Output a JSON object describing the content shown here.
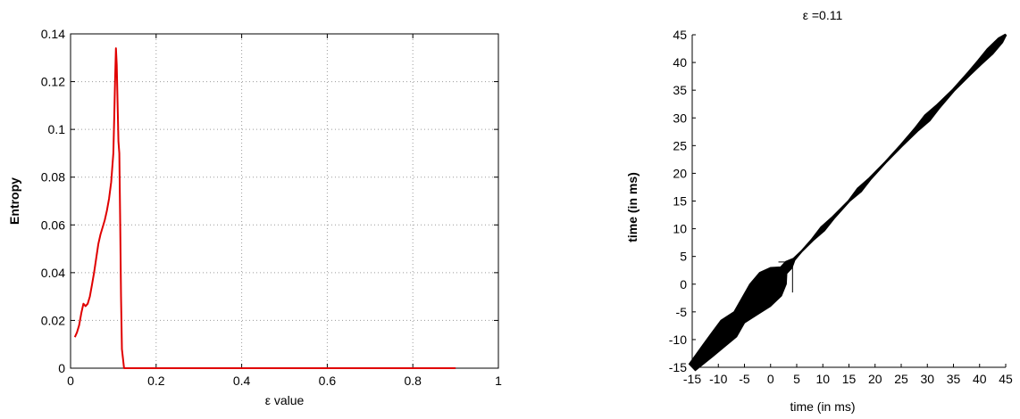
{
  "chart_data": [
    {
      "type": "line",
      "title": "",
      "xlabel": "ε value",
      "ylabel": "Entropy",
      "xlim": [
        0,
        1
      ],
      "ylim": [
        0,
        0.14
      ],
      "xticks": [
        0,
        0.2,
        0.4,
        0.6,
        0.8,
        1
      ],
      "xtick_labels": [
        "0",
        "0.2",
        "0.4",
        "0.6",
        "0.8",
        "1"
      ],
      "yticks": [
        0,
        0.02,
        0.04,
        0.06,
        0.08,
        0.1,
        0.12,
        0.14
      ],
      "ytick_labels": [
        "0",
        "0.02",
        "0.04",
        "0.06",
        "0.08",
        "0.1",
        "0.12",
        "0.14"
      ],
      "grid": true,
      "series": [
        {
          "color": "#e00000",
          "x": [
            0.01,
            0.015,
            0.02,
            0.025,
            0.03,
            0.035,
            0.04,
            0.045,
            0.05,
            0.055,
            0.06,
            0.065,
            0.07,
            0.075,
            0.08,
            0.085,
            0.09,
            0.095,
            0.1,
            0.102,
            0.104,
            0.106,
            0.108,
            0.11,
            0.112,
            0.114,
            0.116,
            0.118,
            0.12,
            0.125,
            0.2,
            0.4,
            0.6,
            0.8,
            0.9
          ],
          "y": [
            0.013,
            0.015,
            0.018,
            0.023,
            0.027,
            0.026,
            0.027,
            0.03,
            0.035,
            0.04,
            0.046,
            0.052,
            0.056,
            0.059,
            0.062,
            0.066,
            0.071,
            0.078,
            0.09,
            0.105,
            0.12,
            0.134,
            0.127,
            0.11,
            0.095,
            0.09,
            0.06,
            0.03,
            0.008,
            0,
            0,
            0,
            0,
            0,
            0
          ]
        }
      ]
    },
    {
      "type": "recurrence-plot",
      "title": "ε =0.11",
      "xlabel": "time (in ms)",
      "ylabel": "time (in ms)",
      "xlim": [
        -15,
        45
      ],
      "ylim": [
        -15,
        45
      ],
      "xticks": [
        -15,
        -10,
        -5,
        0,
        5,
        10,
        15,
        20,
        25,
        30,
        35,
        40,
        45
      ],
      "xtick_labels": [
        "-15",
        "-10",
        "-5",
        "0",
        "5",
        "10",
        "15",
        "20",
        "25",
        "30",
        "35",
        "40",
        "45"
      ],
      "yticks": [
        -15,
        -10,
        -5,
        0,
        5,
        10,
        15,
        20,
        25,
        30,
        35,
        40,
        45
      ],
      "ytick_labels": [
        "-15",
        "-10",
        "-5",
        "0",
        "5",
        "10",
        "15",
        "20",
        "25",
        "30",
        "35",
        "40",
        "45"
      ],
      "grid": false,
      "color": "#000000",
      "diagonal_half_width": [
        [
          -15,
          1.2
        ],
        [
          -12,
          2.0
        ],
        [
          -10,
          2.5
        ],
        [
          -8,
          3.0
        ],
        [
          -6,
          2.0
        ],
        [
          -4,
          3.0
        ],
        [
          -2,
          4.0
        ],
        [
          0,
          4.2
        ],
        [
          1.5,
          3.0
        ],
        [
          2.5,
          1.2
        ],
        [
          3.5,
          1.2
        ],
        [
          4.5,
          0.3
        ],
        [
          6,
          0.15
        ],
        [
          8,
          0.3
        ],
        [
          10,
          0.7
        ],
        [
          12,
          0.35
        ],
        [
          15,
          0.2
        ],
        [
          17,
          0.7
        ],
        [
          19,
          0.3
        ],
        [
          22,
          0.2
        ],
        [
          25,
          0.3
        ],
        [
          28,
          0.6
        ],
        [
          30,
          1.0
        ],
        [
          32,
          0.6
        ],
        [
          35,
          0.3
        ],
        [
          38,
          0.5
        ],
        [
          40,
          0.7
        ],
        [
          42,
          1.0
        ],
        [
          44,
          0.8
        ],
        [
          45,
          0.2
        ]
      ],
      "stray_lines": [
        {
          "from": [
            1.5,
            4.0
          ],
          "to": [
            4.0,
            4.0
          ]
        },
        {
          "from": [
            4.2,
            3.5
          ],
          "to": [
            4.2,
            -1.5
          ]
        }
      ]
    }
  ]
}
